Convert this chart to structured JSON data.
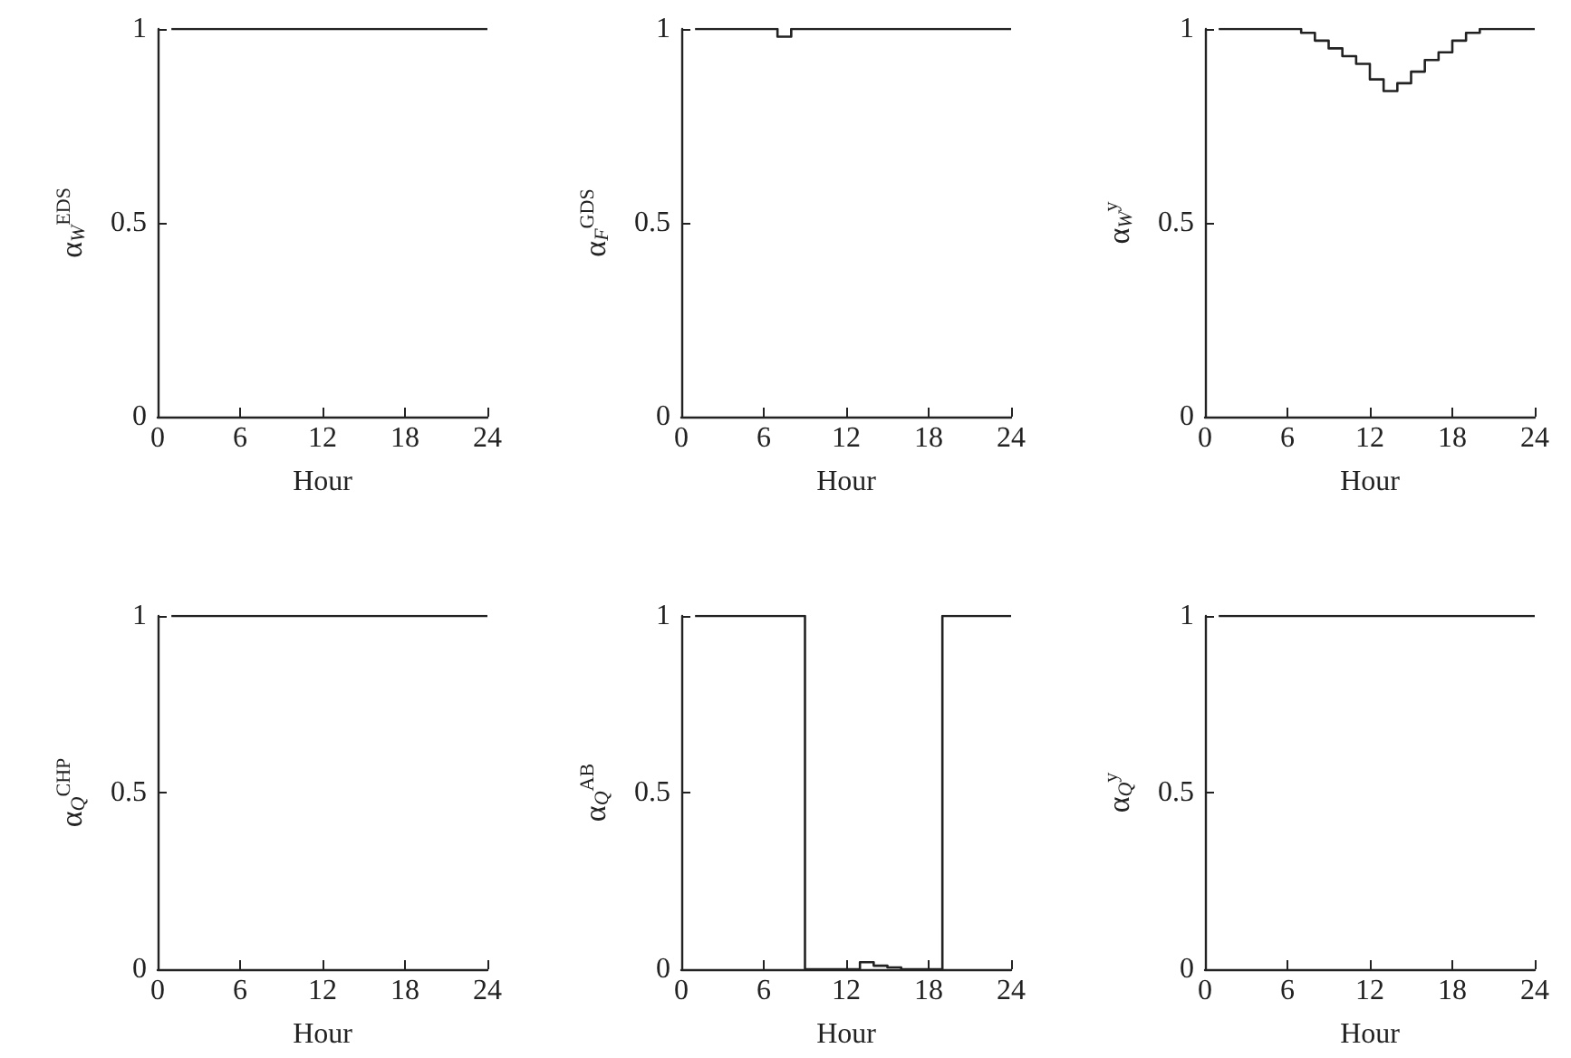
{
  "chart_data": [
    {
      "type": "step",
      "xlabel": "Hour",
      "ylabel": "α$_{W}$$^{EDS}$",
      "xlim": [
        0,
        24
      ],
      "xticks": [
        0,
        6,
        12,
        18,
        24
      ],
      "ylim": [
        0,
        1
      ],
      "yticks": [
        0,
        0.5,
        1
      ],
      "grid": false,
      "marker": "none",
      "line_style": "solid",
      "x": [
        1,
        2,
        3,
        4,
        5,
        6,
        7,
        8,
        9,
        10,
        11,
        12,
        13,
        14,
        15,
        16,
        17,
        18,
        19,
        20,
        21,
        22,
        23,
        24
      ],
      "series": [
        {
          "color": "#222222",
          "values": [
            1,
            1,
            1,
            1,
            1,
            1,
            1,
            1,
            1,
            1,
            1,
            1,
            1,
            1,
            1,
            1,
            1,
            1,
            1,
            1,
            1,
            1,
            1,
            1
          ]
        }
      ]
    },
    {
      "type": "step",
      "xlabel": "Hour",
      "ylabel": "α$_{F}$$^{GDS}$",
      "xlim": [
        0,
        24
      ],
      "xticks": [
        0,
        6,
        12,
        18,
        24
      ],
      "ylim": [
        0,
        1
      ],
      "yticks": [
        0,
        0.5,
        1
      ],
      "grid": false,
      "marker": "none",
      "line_style": "solid",
      "x": [
        1,
        2,
        3,
        4,
        5,
        6,
        7,
        8,
        9,
        10,
        11,
        12,
        13,
        14,
        15,
        16,
        17,
        18,
        19,
        20,
        21,
        22,
        23,
        24
      ],
      "series": [
        {
          "color": "#222222",
          "values": [
            1,
            1,
            1,
            1,
            1,
            1,
            1,
            0.98,
            1,
            1,
            1,
            1,
            1,
            1,
            1,
            1,
            1,
            1,
            1,
            1,
            1,
            1,
            1,
            1
          ]
        }
      ]
    },
    {
      "type": "step",
      "xlabel": "Hour",
      "ylabel": "α$_{W}$$^{y}$",
      "xlim": [
        0,
        24
      ],
      "xticks": [
        0,
        6,
        12,
        18,
        24
      ],
      "ylim": [
        0,
        1
      ],
      "yticks": [
        0,
        0.5,
        1
      ],
      "grid": false,
      "marker": "none",
      "line_style": "solid",
      "x": [
        1,
        2,
        3,
        4,
        5,
        6,
        7,
        8,
        9,
        10,
        11,
        12,
        13,
        14,
        15,
        16,
        17,
        18,
        19,
        20,
        21,
        22,
        23,
        24
      ],
      "series": [
        {
          "color": "#222222",
          "values": [
            1,
            1,
            1,
            1,
            1,
            1,
            1,
            0.99,
            0.97,
            0.95,
            0.93,
            0.91,
            0.87,
            0.84,
            0.86,
            0.89,
            0.92,
            0.94,
            0.97,
            0.99,
            1,
            1,
            1,
            1
          ]
        }
      ]
    },
    {
      "type": "step",
      "xlabel": "Hour",
      "ylabel": "α$_{Q}$$^{CHP}$",
      "xlim": [
        0,
        24
      ],
      "xticks": [
        0,
        6,
        12,
        18,
        24
      ],
      "ylim": [
        0,
        1
      ],
      "yticks": [
        0,
        0.5,
        1
      ],
      "grid": false,
      "marker": "none",
      "line_style": "solid",
      "x": [
        1,
        2,
        3,
        4,
        5,
        6,
        7,
        8,
        9,
        10,
        11,
        12,
        13,
        14,
        15,
        16,
        17,
        18,
        19,
        20,
        21,
        22,
        23,
        24
      ],
      "series": [
        {
          "color": "#222222",
          "values": [
            1,
            1,
            1,
            1,
            1,
            1,
            1,
            1,
            1,
            1,
            1,
            1,
            1,
            1,
            1,
            1,
            1,
            1,
            1,
            1,
            1,
            1,
            1,
            1
          ]
        }
      ]
    },
    {
      "type": "step",
      "xlabel": "Hour",
      "ylabel": "α$_{Q}$$^{AB}$",
      "xlim": [
        0,
        24
      ],
      "xticks": [
        0,
        6,
        12,
        18,
        24
      ],
      "ylim": [
        0,
        1
      ],
      "yticks": [
        0,
        0.5,
        1
      ],
      "grid": false,
      "marker": "none",
      "line_style": "solid",
      "x": [
        1,
        2,
        3,
        4,
        5,
        6,
        7,
        8,
        9,
        10,
        11,
        12,
        13,
        14,
        15,
        16,
        17,
        18,
        19,
        20,
        21,
        22,
        23,
        24
      ],
      "series": [
        {
          "color": "#222222",
          "values": [
            1,
            1,
            1,
            1,
            1,
            1,
            1,
            1,
            1,
            0,
            0,
            0,
            0,
            0.02,
            0.01,
            0.005,
            0,
            0,
            0,
            1,
            1,
            1,
            1,
            1
          ]
        }
      ]
    },
    {
      "type": "step",
      "xlabel": "Hour",
      "ylabel": "α$_{Q}$$^{y}$",
      "xlim": [
        0,
        24
      ],
      "xticks": [
        0,
        6,
        12,
        18,
        24
      ],
      "ylim": [
        0,
        1
      ],
      "yticks": [
        0,
        0.5,
        1
      ],
      "grid": false,
      "marker": "none",
      "line_style": "solid",
      "x": [
        1,
        2,
        3,
        4,
        5,
        6,
        7,
        8,
        9,
        10,
        11,
        12,
        13,
        14,
        15,
        16,
        17,
        18,
        19,
        20,
        21,
        22,
        23,
        24
      ],
      "series": [
        {
          "color": "#222222",
          "values": [
            1,
            1,
            1,
            1,
            1,
            1,
            1,
            1,
            1,
            1,
            1,
            1,
            1,
            1,
            1,
            1,
            1,
            1,
            1,
            1,
            1,
            1,
            1,
            1
          ]
        }
      ]
    }
  ]
}
